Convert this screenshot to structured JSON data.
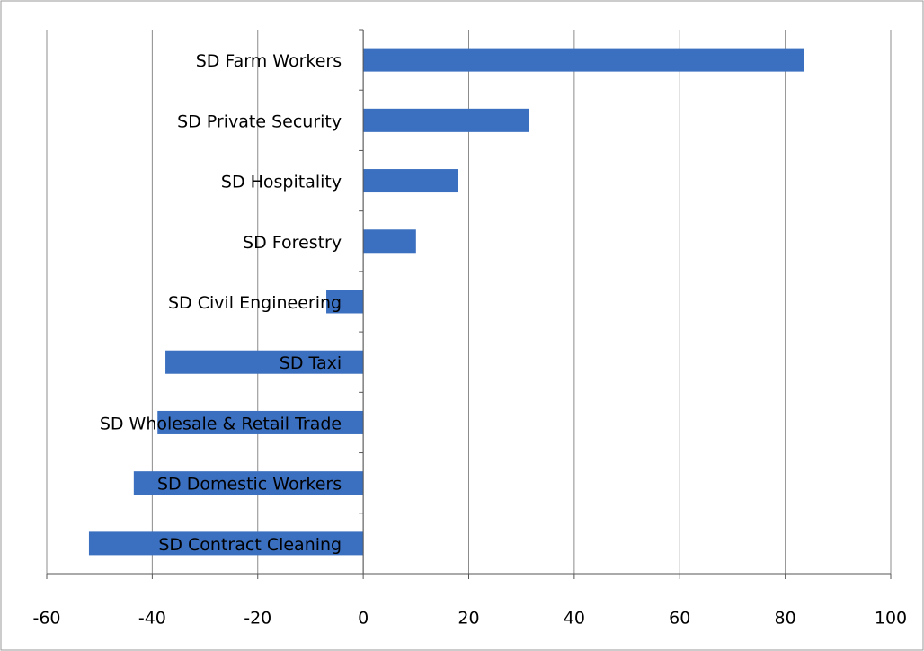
{
  "chart_data": {
    "type": "bar",
    "orientation": "horizontal",
    "categories": [
      "SD Farm Workers",
      "SD Private Security",
      "SD Hospitality",
      "SD Forestry",
      "SD Civil Engineering",
      "SD Taxi",
      "SD Wholesale & Retail Trade",
      "SD Domestic Workers",
      "SD Contract Cleaning"
    ],
    "values": [
      83.5,
      31.5,
      18,
      10,
      -7,
      -37.5,
      -39,
      -43.5,
      -52
    ],
    "color": "#3b6fbf",
    "xlim": [
      -60,
      100
    ],
    "xticks": [
      -60,
      -40,
      -20,
      0,
      20,
      40,
      60,
      80,
      100
    ],
    "grid": true
  }
}
